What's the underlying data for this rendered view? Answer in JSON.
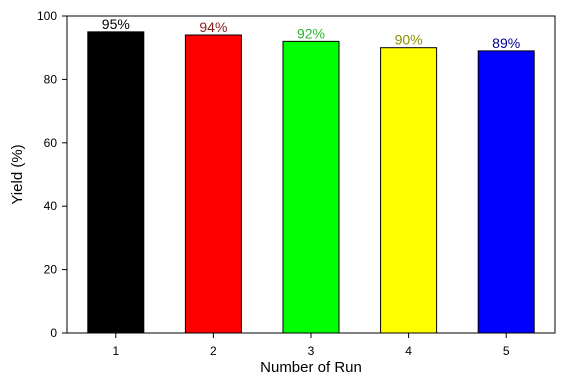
{
  "chart_data": {
    "type": "bar",
    "categories": [
      "1",
      "2",
      "3",
      "4",
      "5"
    ],
    "values": [
      95,
      94,
      92,
      90,
      89
    ],
    "data_labels": [
      "95%",
      "94%",
      "92%",
      "90%",
      "89%"
    ],
    "bar_colors": [
      "#000000",
      "#ff0000",
      "#00ff00",
      "#ffff00",
      "#0000ff"
    ],
    "label_colors": [
      "#000000",
      "#8b1a1a",
      "#2db52d",
      "#8f8f00",
      "#00008b"
    ],
    "xlabel": "Number of Run",
    "ylabel": "Yield (%)",
    "ylim": [
      0,
      100
    ],
    "yticks": [
      0,
      20,
      40,
      60,
      80,
      100
    ],
    "grid": false
  }
}
